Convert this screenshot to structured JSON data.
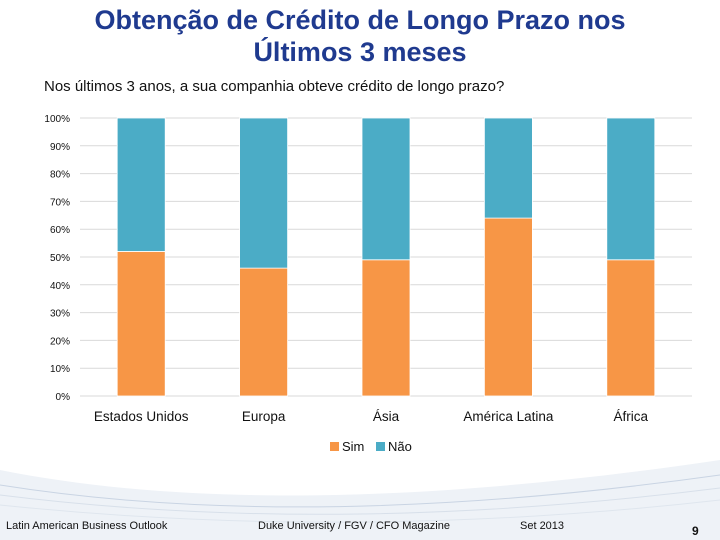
{
  "slide": {
    "title_line1": "Obtenção de Crédito de Longo Prazo nos",
    "title_line2": "Últimos 3 meses",
    "subtitle": "Nos últimos 3 anos, a sua companhia obteve crédito de longo prazo?"
  },
  "footer": {
    "left": "Latin American Business Outlook",
    "middle": "Duke University / FGV / CFO Magazine",
    "date": "Set 2013",
    "page": "9"
  },
  "colors": {
    "sim": "#f79646",
    "nao": "#4bacc6",
    "title": "#1f3a8f"
  },
  "chart_data": {
    "type": "bar",
    "stacked": true,
    "categories": [
      "Estados Unidos",
      "Europa",
      "Ásia",
      "América Latina",
      "África"
    ],
    "series": [
      {
        "name": "Sim",
        "values": [
          52,
          46,
          49,
          64,
          49
        ]
      },
      {
        "name": "Não",
        "values": [
          48,
          54,
          51,
          36,
          51
        ]
      }
    ],
    "yticks": [
      "0%",
      "10%",
      "20%",
      "30%",
      "40%",
      "50%",
      "60%",
      "70%",
      "80%",
      "90%",
      "100%"
    ],
    "ylim": [
      0,
      100
    ],
    "legend": "bottom"
  }
}
